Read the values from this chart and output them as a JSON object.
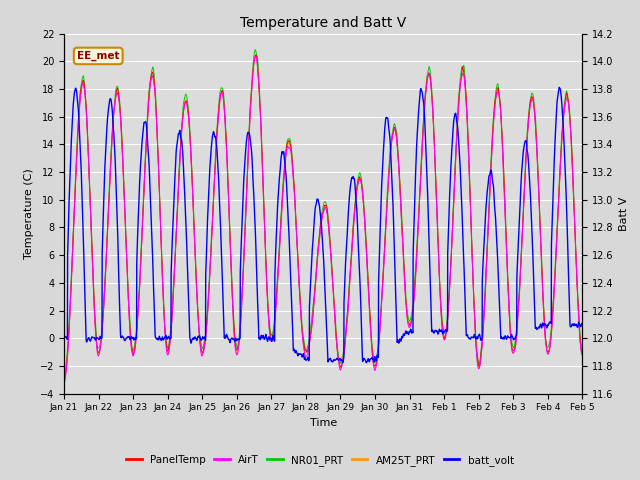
{
  "title": "Temperature and Batt V",
  "xlabel": "Time",
  "ylabel_left": "Temperature (C)",
  "ylabel_right": "Batt V",
  "ylim_left": [
    -4,
    22
  ],
  "ylim_right": [
    11.6,
    14.2
  ],
  "yticks_left": [
    -4,
    -2,
    0,
    2,
    4,
    6,
    8,
    10,
    12,
    14,
    16,
    18,
    20,
    22
  ],
  "yticks_right": [
    11.6,
    11.8,
    12.0,
    12.2,
    12.4,
    12.6,
    12.8,
    13.0,
    13.2,
    13.4,
    13.6,
    13.8,
    14.0,
    14.2
  ],
  "xtick_labels": [
    "Jan 21",
    "Jan 22",
    "Jan 23",
    "Jan 24",
    "Jan 25",
    "Jan 26",
    "Jan 27",
    "Jan 28",
    "Jan 29",
    "Jan 30",
    "Jan 31",
    "Feb 1",
    "Feb 2",
    "Feb 3",
    "Feb 4",
    "Feb 5"
  ],
  "series_colors": {
    "PanelTemp": "#ff0000",
    "AirT": "#ff00ff",
    "NR01_PRT": "#00cc00",
    "AM25T_PRT": "#ff9900",
    "batt_volt": "#0000ff"
  },
  "legend_label": "EE_met",
  "legend_box_facecolor": "#f5f5dc",
  "legend_box_edgecolor": "#cc8800",
  "legend_text_color": "#880000",
  "fig_facecolor": "#d8d8d8",
  "plot_facecolor": "#dcdcdc",
  "grid_color": "#ffffff",
  "n_points": 2880,
  "seed": 7
}
